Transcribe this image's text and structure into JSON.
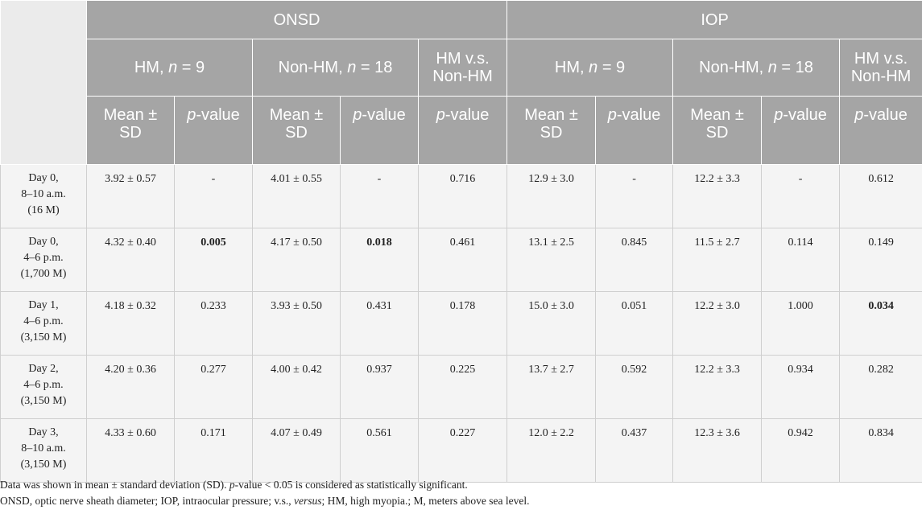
{
  "header": {
    "groups": [
      "ONSD",
      "IOP"
    ],
    "subgroups": [
      {
        "name": "HM,",
        "n_var": "n",
        "n_rest": " = 9"
      },
      {
        "name": "Non-HM,",
        "n_var": "n",
        "n_rest": " = 18"
      },
      {
        "line1": "HM v.s.",
        "line2": "Non-HM"
      },
      {
        "name": "HM,",
        "n_var": "n",
        "n_rest": " = 9"
      },
      {
        "name": "Non-HM,",
        "n_var": "n",
        "n_rest": " = 18"
      },
      {
        "line1": "HM v.s.",
        "line2": "Non-HM"
      }
    ],
    "mean_sd_line1": "Mean ±",
    "mean_sd_line2": "SD",
    "pvalue_p": "p",
    "pvalue_rest": "-value"
  },
  "rows": [
    {
      "label": [
        "Day 0,",
        "8–10 a.m.",
        "(16 M)"
      ],
      "cells": [
        {
          "text": "3.92 ± 0.57"
        },
        {
          "text": "-"
        },
        {
          "text": "4.01 ± 0.55"
        },
        {
          "text": "-"
        },
        {
          "text": "0.716"
        },
        {
          "text": "12.9 ± 3.0"
        },
        {
          "text": "-"
        },
        {
          "text": "12.2 ± 3.3"
        },
        {
          "text": "-"
        },
        {
          "text": "0.612"
        }
      ]
    },
    {
      "label": [
        "Day 0,",
        "4–6 p.m.",
        "(1,700 M)"
      ],
      "cells": [
        {
          "text": "4.32 ± 0.40"
        },
        {
          "text": "0.005",
          "bold": true
        },
        {
          "text": "4.17 ± 0.50"
        },
        {
          "text": "0.018",
          "bold": true
        },
        {
          "text": "0.461"
        },
        {
          "text": "13.1 ± 2.5"
        },
        {
          "text": "0.845"
        },
        {
          "text": "11.5 ± 2.7"
        },
        {
          "text": "0.114"
        },
        {
          "text": "0.149"
        }
      ]
    },
    {
      "label": [
        "Day 1,",
        "4–6 p.m.",
        "(3,150 M)"
      ],
      "cells": [
        {
          "text": "4.18 ± 0.32"
        },
        {
          "text": "0.233"
        },
        {
          "text": "3.93 ± 0.50"
        },
        {
          "text": "0.431"
        },
        {
          "text": "0.178"
        },
        {
          "text": "15.0 ± 3.0"
        },
        {
          "text": "0.051"
        },
        {
          "text": "12.2 ± 3.0"
        },
        {
          "text": "1.000"
        },
        {
          "text": "0.034",
          "bold": true
        }
      ]
    },
    {
      "label": [
        "Day 2,",
        "4–6 p.m.",
        "(3,150 M)"
      ],
      "cells": [
        {
          "text": "4.20 ± 0.36"
        },
        {
          "text": "0.277"
        },
        {
          "text": "4.00 ± 0.42"
        },
        {
          "text": "0.937"
        },
        {
          "text": "0.225"
        },
        {
          "text": "13.7 ± 2.7"
        },
        {
          "text": "0.592"
        },
        {
          "text": "12.2 ± 3.3"
        },
        {
          "text": "0.934"
        },
        {
          "text": "0.282"
        }
      ]
    },
    {
      "label": [
        "Day 3,",
        "8–10 a.m.",
        "(3,150 M)"
      ],
      "cells": [
        {
          "text": "4.33 ± 0.60"
        },
        {
          "text": "0.171"
        },
        {
          "text": "4.07 ± 0.49"
        },
        {
          "text": "0.561"
        },
        {
          "text": "0.227"
        },
        {
          "text": "12.0 ± 2.2"
        },
        {
          "text": "0.437"
        },
        {
          "text": "12.3 ± 3.6"
        },
        {
          "text": "0.942"
        },
        {
          "text": "0.834"
        }
      ]
    }
  ],
  "footnotes": {
    "line1_a": "Data was shown in mean ± standard deviation (SD). ",
    "line1_p": "p",
    "line1_b": "-value < 0.05 is considered as statistically significant.",
    "line2_a": "ONSD, optic nerve sheath diameter; IOP, intraocular pressure; v.s., ",
    "line2_versus": "versus",
    "line2_b": "; HM, high myopia.; M, meters above sea level."
  },
  "colors": {
    "header_bg": "#a5a5a5",
    "corner_bg": "#ebebeb",
    "body_bg": "#f4f4f4",
    "header_text": "#ffffff"
  }
}
